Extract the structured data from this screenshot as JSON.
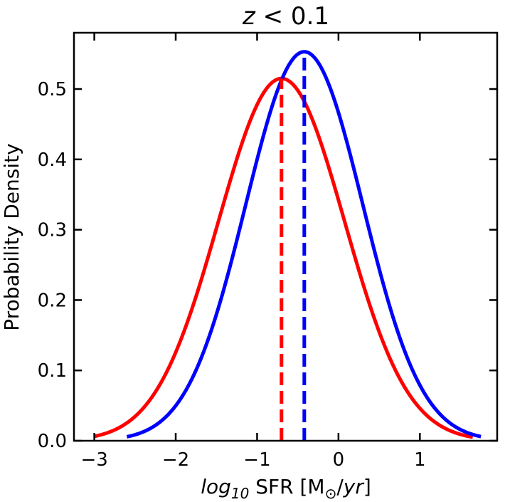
{
  "chart_data": {
    "type": "line",
    "title": {
      "z": "z",
      "rest": " < 0.1"
    },
    "xlabel": {
      "log": "log",
      "sub10": "10",
      "sfr": " SFR [M",
      "sun": "⊙",
      "slash": "/",
      "yr": "yr",
      "close": "]"
    },
    "ylabel": "Probability Density",
    "xlim": [
      -3.25,
      1.95
    ],
    "ylim": [
      0.0,
      0.58
    ],
    "xticks": [
      -3,
      -2,
      -1,
      0,
      1
    ],
    "xtick_labels": [
      "−3",
      "−2",
      "−1",
      "0",
      "1"
    ],
    "yticks": [
      0.0,
      0.1,
      0.2,
      0.3,
      0.4,
      0.5
    ],
    "ytick_labels": [
      "0.0",
      "0.1",
      "0.2",
      "0.3",
      "0.4",
      "0.5"
    ],
    "grid": false,
    "series": [
      {
        "name": "red",
        "color": "#ff0000",
        "kind": "gaussian",
        "mu": -0.7,
        "sigma": 0.774,
        "peak": 0.515,
        "x_range": [
          -3.0,
          1.65
        ]
      },
      {
        "name": "blue",
        "color": "#0000ff",
        "kind": "gaussian",
        "mu": -0.42,
        "sigma": 0.72,
        "peak": 0.553,
        "x_range": [
          -2.6,
          1.75
        ]
      }
    ],
    "vlines": [
      {
        "name": "red-median",
        "x": -0.7,
        "y_top": 0.515,
        "color": "#ff0000",
        "style": "dashed"
      },
      {
        "name": "blue-median",
        "x": -0.42,
        "y_top": 0.553,
        "color": "#0000ff",
        "style": "dashed"
      }
    ]
  }
}
